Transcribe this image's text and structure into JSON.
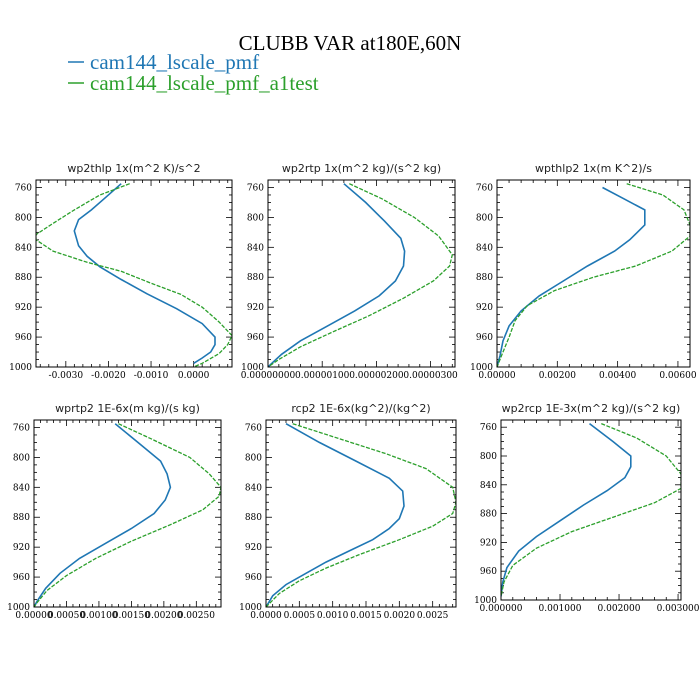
{
  "chart_data": [
    {
      "type": "line",
      "title": "wp2thlp   1x(m^2 K)/s^2",
      "ylim": [
        1000,
        750
      ],
      "xlim": [
        -0.0037,
        0.0009
      ],
      "y_ticks": [
        760,
        800,
        840,
        880,
        920,
        960,
        1000
      ],
      "x_ticks": [
        -0.003,
        -0.002,
        -0.001,
        0.0
      ],
      "x_tick_labels": [
        "-0.0030",
        "-0.0020",
        "-0.0010",
        "0.0000"
      ],
      "series": [
        {
          "name": "cam144_lscale_pmf",
          "color": "#1f77b4",
          "style": "solid",
          "points": [
            [
              -0.0017,
              755
            ],
            [
              -0.0021,
              775
            ],
            [
              -0.0024,
              790
            ],
            [
              -0.0027,
              803
            ],
            [
              -0.0028,
              818
            ],
            [
              -0.0027,
              838
            ],
            [
              -0.0025,
              852
            ],
            [
              -0.0022,
              866
            ],
            [
              -0.0017,
              883
            ],
            [
              -0.0011,
              902
            ],
            [
              -0.0004,
              922
            ],
            [
              0.0002,
              942
            ],
            [
              0.0005,
              960
            ],
            [
              0.0005,
              970
            ],
            [
              0.0004,
              980
            ],
            [
              0.0002,
              988
            ],
            [
              0.0,
              995
            ]
          ]
        },
        {
          "name": "cam144_lscale_pmf_a1test",
          "color": "#2ca02c",
          "style": "dashed",
          "points": [
            [
              -0.0015,
              755
            ],
            [
              -0.0022,
              770
            ],
            [
              -0.0028,
              790
            ],
            [
              -0.0033,
              808
            ],
            [
              -0.0037,
              823
            ],
            [
              -0.0037,
              830
            ],
            [
              -0.0033,
              845
            ],
            [
              -0.0025,
              860
            ],
            [
              -0.0017,
              872
            ],
            [
              -0.001,
              888
            ],
            [
              -0.0003,
              903
            ],
            [
              0.0002,
              920
            ],
            [
              0.0006,
              940
            ],
            [
              0.0009,
              958
            ],
            [
              0.0008,
              970
            ],
            [
              0.0006,
              982
            ],
            [
              0.0002,
              995
            ],
            [
              0.0,
              1000
            ]
          ]
        }
      ]
    },
    {
      "type": "line",
      "title": "wp2rtp   1x(m^2 kg)/(s^2 kg)",
      "ylim": [
        1000,
        750
      ],
      "xlim": [
        0,
        3.45e-06
      ],
      "y_ticks": [
        760,
        800,
        840,
        880,
        920,
        960,
        1000
      ],
      "x_ticks": [
        0,
        1e-06,
        2e-06,
        3e-06
      ],
      "x_tick_labels": [
        "0.00000000",
        "0.00000100",
        "0.00000200",
        "0.00000300"
      ],
      "series": [
        {
          "name": "cam144_lscale_pmf",
          "color": "#1f77b4",
          "style": "solid",
          "points": [
            [
              1.4e-06,
              755
            ],
            [
              1.8e-06,
              780
            ],
            [
              2.15e-06,
              805
            ],
            [
              2.45e-06,
              828
            ],
            [
              2.52e-06,
              845
            ],
            [
              2.5e-06,
              865
            ],
            [
              2.35e-06,
              885
            ],
            [
              2.05e-06,
              905
            ],
            [
              1.6e-06,
              925
            ],
            [
              1.1e-06,
              945
            ],
            [
              6e-07,
              965
            ],
            [
              2.5e-07,
              983
            ],
            [
              1e-07,
              993
            ],
            [
              0,
              1000
            ]
          ]
        },
        {
          "name": "cam144_lscale_pmf_a1test",
          "color": "#2ca02c",
          "style": "dashed",
          "points": [
            [
              1.5e-06,
              755
            ],
            [
              2.1e-06,
              775
            ],
            [
              2.7e-06,
              800
            ],
            [
              3.15e-06,
              825
            ],
            [
              3.4e-06,
              850
            ],
            [
              3.35e-06,
              865
            ],
            [
              3.05e-06,
              885
            ],
            [
              2.5e-06,
              908
            ],
            [
              1.85e-06,
              932
            ],
            [
              1.2e-06,
              953
            ],
            [
              6e-07,
              973
            ],
            [
              2e-07,
              990
            ],
            [
              0,
              1000
            ]
          ]
        }
      ]
    },
    {
      "type": "line",
      "title": "wpthlp2   1x(m K^2)/s",
      "ylim": [
        1000,
        750
      ],
      "xlim": [
        0,
        0.0064
      ],
      "y_ticks": [
        760,
        800,
        840,
        880,
        920,
        960,
        1000
      ],
      "x_ticks": [
        0,
        0.002,
        0.004,
        0.006
      ],
      "x_tick_labels": [
        "0.00000",
        "0.00200",
        "0.00400",
        "0.00600"
      ],
      "series": [
        {
          "name": "cam144_lscale_pmf",
          "color": "#1f77b4",
          "style": "solid",
          "points": [
            [
              0.0035,
              760
            ],
            [
              0.0042,
              775
            ],
            [
              0.0049,
              790
            ],
            [
              0.0049,
              810
            ],
            [
              0.0044,
              830
            ],
            [
              0.0039,
              845
            ],
            [
              0.003,
              865
            ],
            [
              0.0022,
              885
            ],
            [
              0.0014,
              905
            ],
            [
              0.0008,
              925
            ],
            [
              0.0004,
              945
            ],
            [
              0.0002,
              965
            ],
            [
              0.0001,
              985
            ],
            [
              0.0,
              1000
            ]
          ]
        },
        {
          "name": "cam144_lscale_pmf_a1test",
          "color": "#2ca02c",
          "style": "dashed",
          "points": [
            [
              0.0043,
              755
            ],
            [
              0.0055,
              770
            ],
            [
              0.0062,
              790
            ],
            [
              0.0064,
              810
            ],
            [
              0.0064,
              825
            ],
            [
              0.0058,
              845
            ],
            [
              0.0046,
              865
            ],
            [
              0.0032,
              880
            ],
            [
              0.0019,
              898
            ],
            [
              0.001,
              918
            ],
            [
              0.0006,
              938
            ],
            [
              0.0004,
              960
            ],
            [
              0.0002,
              980
            ],
            [
              0.0,
              1000
            ]
          ]
        }
      ]
    },
    {
      "type": "line",
      "title": "wprtp2   1E-6x(m kg)/(s kg)",
      "ylim": [
        1000,
        750
      ],
      "xlim": [
        0,
        0.00288
      ],
      "y_ticks": [
        760,
        800,
        840,
        880,
        920,
        960,
        1000
      ],
      "x_ticks": [
        0,
        0.0005,
        0.001,
        0.0015,
        0.002,
        0.0025
      ],
      "x_tick_labels": [
        "0.00000",
        "0.00050",
        "0.00100",
        "0.00150",
        "0.00200",
        "0.00250"
      ],
      "series": [
        {
          "name": "cam144_lscale_pmf",
          "color": "#1f77b4",
          "style": "solid",
          "points": [
            [
              0.00125,
              755
            ],
            [
              0.0016,
              780
            ],
            [
              0.00195,
              805
            ],
            [
              0.00205,
              822
            ],
            [
              0.0021,
              840
            ],
            [
              0.00202,
              857
            ],
            [
              0.00185,
              875
            ],
            [
              0.0015,
              895
            ],
            [
              0.0011,
              915
            ],
            [
              0.0007,
              935
            ],
            [
              0.0004,
              955
            ],
            [
              0.00018,
              975
            ],
            [
              5e-05,
              992
            ],
            [
              0,
              1000
            ]
          ]
        },
        {
          "name": "cam144_lscale_pmf_a1test",
          "color": "#2ca02c",
          "style": "dashed",
          "points": [
            [
              0.0013,
              755
            ],
            [
              0.0018,
              775
            ],
            [
              0.0024,
              800
            ],
            [
              0.0027,
              822
            ],
            [
              0.00288,
              840
            ],
            [
              0.00285,
              852
            ],
            [
              0.0026,
              870
            ],
            [
              0.0021,
              890
            ],
            [
              0.0015,
              912
            ],
            [
              0.00095,
              935
            ],
            [
              0.0005,
              958
            ],
            [
              0.0002,
              978
            ],
            [
              5e-05,
              994
            ],
            [
              0,
              1000
            ]
          ]
        }
      ]
    },
    {
      "type": "line",
      "title": "rcp2   1E-6x(kg^2)/(kg^2)",
      "ylim": [
        1000,
        750
      ],
      "xlim": [
        0,
        0.00285
      ],
      "y_ticks": [
        760,
        800,
        840,
        880,
        920,
        960,
        1000
      ],
      "x_ticks": [
        0,
        0.0005,
        0.001,
        0.0015,
        0.002,
        0.0025
      ],
      "x_tick_labels": [
        "0.0000",
        "0.0005",
        "0.0010",
        "0.0015",
        "0.0020",
        "0.0025"
      ],
      "series": [
        {
          "name": "cam144_lscale_pmf",
          "color": "#1f77b4",
          "style": "solid",
          "points": [
            [
              0.0003,
              755
            ],
            [
              0.0008,
              780
            ],
            [
              0.00135,
              805
            ],
            [
              0.00185,
              828
            ],
            [
              0.00205,
              845
            ],
            [
              0.00207,
              865
            ],
            [
              0.002,
              882
            ],
            [
              0.00185,
              895
            ],
            [
              0.0016,
              910
            ],
            [
              0.00125,
              925
            ],
            [
              0.0009,
              940
            ],
            [
              0.0006,
              955
            ],
            [
              0.0003,
              970
            ],
            [
              0.0001,
              985
            ],
            [
              0,
              1000
            ]
          ]
        },
        {
          "name": "cam144_lscale_pmf_a1test",
          "color": "#2ca02c",
          "style": "dashed",
          "points": [
            [
              0.0004,
              755
            ],
            [
              0.0011,
              775
            ],
            [
              0.0018,
              795
            ],
            [
              0.0024,
              815
            ],
            [
              0.0028,
              840
            ],
            [
              0.00285,
              860
            ],
            [
              0.0028,
              875
            ],
            [
              0.0025,
              892
            ],
            [
              0.002,
              910
            ],
            [
              0.0014,
              930
            ],
            [
              0.0009,
              948
            ],
            [
              0.0005,
              965
            ],
            [
              0.0002,
              982
            ],
            [
              0,
              1000
            ]
          ]
        }
      ]
    },
    {
      "type": "line",
      "title": "wp2rcp   1E-3x(m^2 kg)/(s^2 kg)",
      "ylim": [
        1000,
        750
      ],
      "xlim": [
        0,
        0.00305
      ],
      "y_ticks": [
        760,
        800,
        840,
        880,
        920,
        960,
        1000
      ],
      "x_ticks": [
        0,
        0.001,
        0.002,
        0.003
      ],
      "x_tick_labels": [
        "0.000000",
        "0.001000",
        "0.002000",
        "0.003000"
      ],
      "series": [
        {
          "name": "cam144_lscale_pmf",
          "color": "#1f77b4",
          "style": "solid",
          "points": [
            [
              0.0015,
              755
            ],
            [
              0.0019,
              780
            ],
            [
              0.0022,
              800
            ],
            [
              0.0022,
              815
            ],
            [
              0.0021,
              830
            ],
            [
              0.0018,
              848
            ],
            [
              0.0014,
              868
            ],
            [
              0.001,
              890
            ],
            [
              0.0006,
              912
            ],
            [
              0.0003,
              932
            ],
            [
              0.0001,
              955
            ],
            [
              3e-05,
              975
            ],
            [
              0,
              995
            ]
          ]
        },
        {
          "name": "cam144_lscale_pmf_a1test",
          "color": "#2ca02c",
          "style": "dashed",
          "points": [
            [
              0.0017,
              755
            ],
            [
              0.0023,
              775
            ],
            [
              0.0028,
              800
            ],
            [
              0.00305,
              825
            ],
            [
              0.00305,
              845
            ],
            [
              0.0026,
              865
            ],
            [
              0.0019,
              885
            ],
            [
              0.0012,
              905
            ],
            [
              0.0006,
              928
            ],
            [
              0.0002,
              952
            ],
            [
              5e-05,
              975
            ],
            [
              0,
              995
            ]
          ]
        }
      ]
    }
  ],
  "figure": {
    "title": "CLUBB VAR at180E,60N",
    "legend": [
      {
        "label": "cam144_lscale_pmf",
        "color": "#1f77b4"
      },
      {
        "label": "cam144_lscale_pmf_a1test",
        "color": "#2ca02c"
      }
    ]
  }
}
